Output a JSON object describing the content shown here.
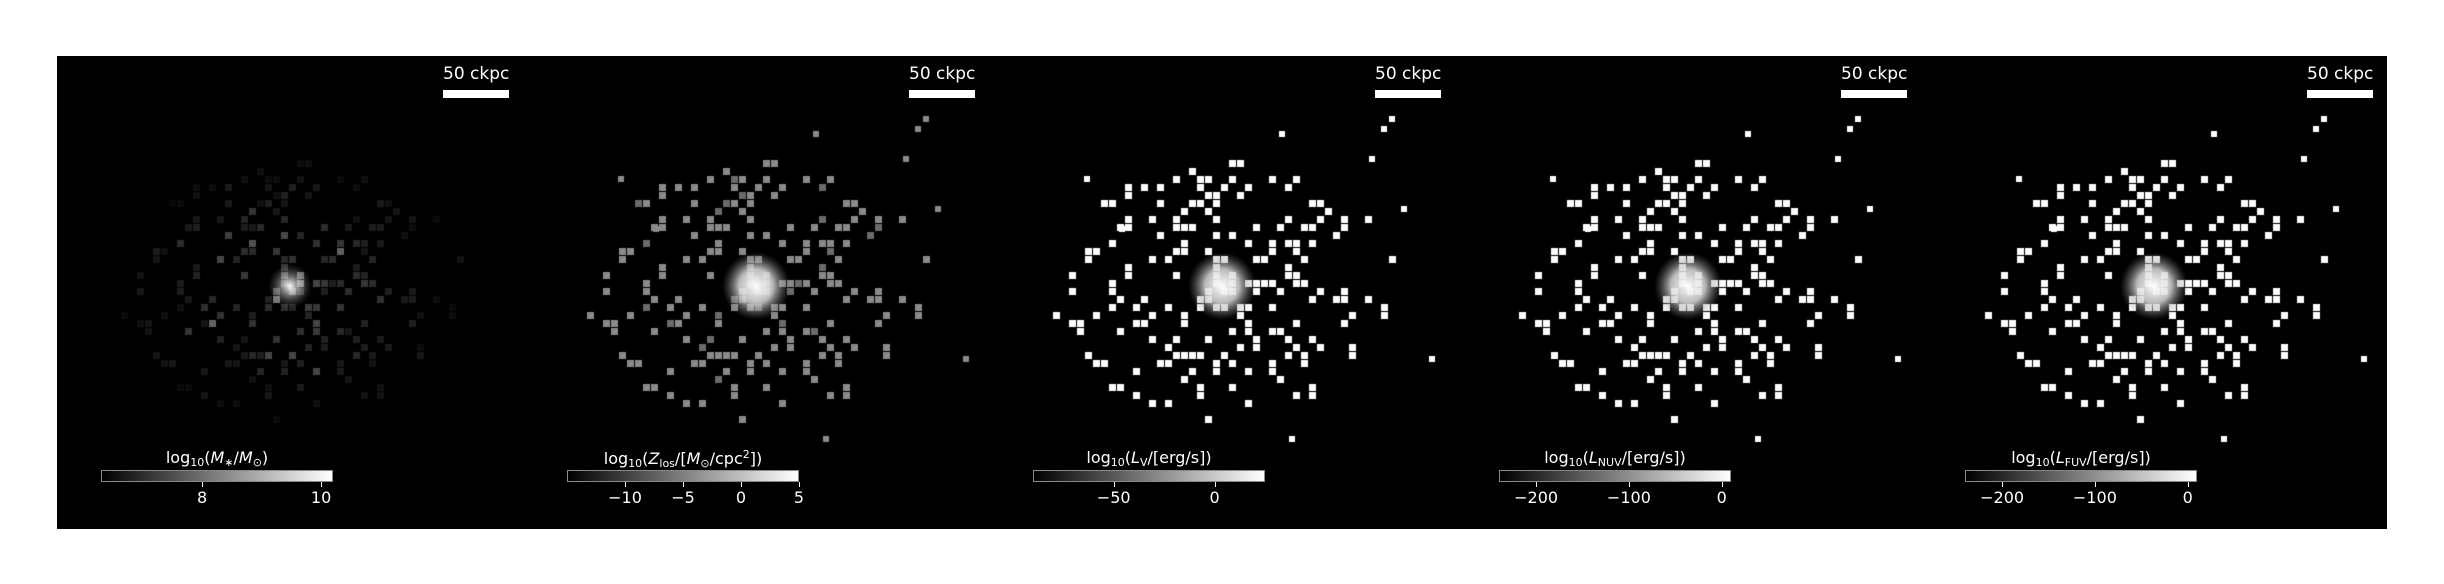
{
  "scalebar_label": "50 ckpc",
  "panels": [
    {
      "id": "stellar-mass",
      "colorbar_ticks": [
        {
          "value": 8,
          "label": "8"
        },
        {
          "value": 10,
          "label": "10"
        }
      ],
      "colorbar_range": [
        6.3,
        10.2
      ]
    },
    {
      "id": "metallicity",
      "colorbar_ticks": [
        {
          "value": -10,
          "label": "−10"
        },
        {
          "value": -5,
          "label": "−5"
        },
        {
          "value": 0,
          "label": "0"
        },
        {
          "value": 5,
          "label": "5"
        }
      ],
      "colorbar_range": [
        -15,
        5
      ]
    },
    {
      "id": "v-band-luminosity",
      "colorbar_ticks": [
        {
          "value": -50,
          "label": "−50"
        },
        {
          "value": 0,
          "label": "0"
        }
      ],
      "colorbar_range": [
        -90,
        25
      ]
    },
    {
      "id": "nuv-luminosity",
      "colorbar_ticks": [
        {
          "value": -200,
          "label": "−200"
        },
        {
          "value": -100,
          "label": "−100"
        },
        {
          "value": 0,
          "label": "0"
        }
      ],
      "colorbar_range": [
        -240,
        10
      ]
    },
    {
      "id": "fuv-luminosity",
      "colorbar_ticks": [
        {
          "value": -200,
          "label": "−200"
        },
        {
          "value": -100,
          "label": "−100"
        },
        {
          "value": 0,
          "label": "0"
        }
      ],
      "colorbar_range": [
        -240,
        10
      ]
    }
  ]
}
